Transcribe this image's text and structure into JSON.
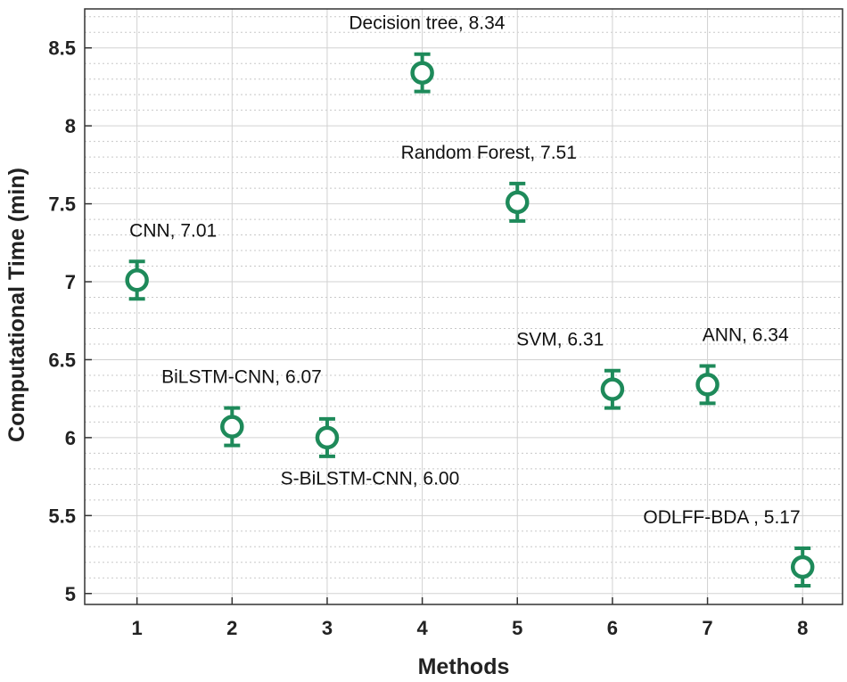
{
  "chart_data": {
    "type": "scatter",
    "title": "",
    "xlabel": "Methods",
    "ylabel": "Computational Time (min)",
    "xlim": [
      0.45,
      8.42
    ],
    "ylim": [
      4.93,
      8.75
    ],
    "xticks": [
      1,
      2,
      3,
      4,
      5,
      6,
      7,
      8
    ],
    "xtick_labels": [
      "1",
      "2",
      "3",
      "4",
      "5",
      "6",
      "7",
      "8"
    ],
    "yticks": [
      5,
      5.5,
      6,
      6.5,
      7,
      7.5,
      8,
      8.5
    ],
    "ytick_labels": [
      "5",
      "5.5",
      "6",
      "6.5",
      "7",
      "7.5",
      "8",
      "8.5"
    ],
    "grid": true,
    "minor_grid": true,
    "marker": "circle",
    "error_bar": 0.12,
    "color": "#1e8a5a",
    "points": [
      {
        "x": 1,
        "y": 7.01,
        "label": "CNN, 7.01",
        "label_dx": 0.38,
        "label_dy": 0.32
      },
      {
        "x": 2,
        "y": 6.07,
        "label": "BiLSTM-CNN, 6.07",
        "label_dx": 0.1,
        "label_dy": 0.32
      },
      {
        "x": 3,
        "y": 6.0,
        "label": "S-BiLSTM-CNN, 6.00",
        "label_dx": 0.45,
        "label_dy": -0.26
      },
      {
        "x": 4,
        "y": 8.34,
        "label": "Decision tree, 8.34",
        "label_dx": 0.05,
        "label_dy": 0.32
      },
      {
        "x": 5,
        "y": 7.51,
        "label": "Random Forest, 7.51",
        "label_dx": -0.3,
        "label_dy": 0.32
      },
      {
        "x": 6,
        "y": 6.31,
        "label": "SVM, 6.31",
        "label_dx": -0.55,
        "label_dy": 0.32
      },
      {
        "x": 7,
        "y": 6.34,
        "label": "ANN, 6.34",
        "label_dx": 0.4,
        "label_dy": 0.32
      },
      {
        "x": 8,
        "y": 5.17,
        "label": "ODLFF-BDA , 5.17",
        "label_dx": -0.85,
        "label_dy": 0.32
      }
    ]
  }
}
